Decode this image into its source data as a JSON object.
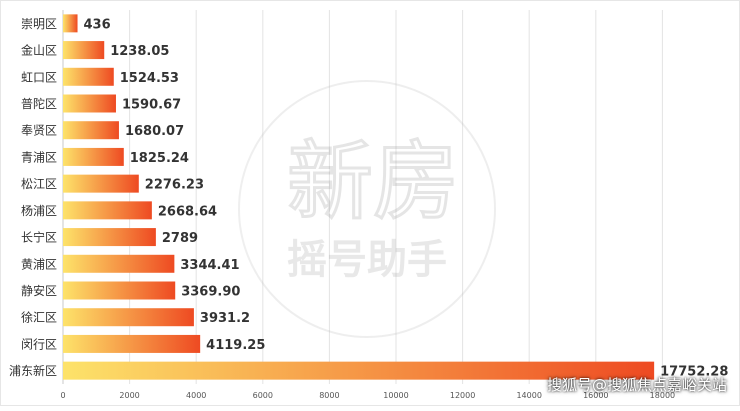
{
  "chart_data": {
    "type": "bar",
    "orientation": "horizontal",
    "categories": [
      "崇明区",
      "金山区",
      "虹口区",
      "普陀区",
      "奉贤区",
      "青浦区",
      "松江区",
      "杨浦区",
      "长宁区",
      "黄浦区",
      "静安区",
      "徐汇区",
      "闵行区",
      "浦东新区"
    ],
    "values": [
      436,
      1238.05,
      1524.53,
      1590.67,
      1680.07,
      1825.24,
      2276.23,
      2668.64,
      2789,
      3344.41,
      3369.9,
      3931.2,
      4119.25,
      17752.28
    ],
    "value_labels": [
      "436",
      "1238.05",
      "1524.53",
      "1590.67",
      "1680.07",
      "1825.24",
      "2276.23",
      "2668.64",
      "2789",
      "3344.41",
      "3369.90",
      "3931.2",
      "4119.25",
      "17752.28"
    ],
    "x_ticks": [
      "0",
      "2000",
      "4000",
      "6000",
      "8000",
      "10000",
      "12000",
      "14000",
      "16000",
      "18000"
    ],
    "xlim": [
      0,
      20000
    ],
    "grid": true,
    "colors": {
      "bar_start": "#fde36a",
      "bar_end": "#ee4a22",
      "grid": "#e3e3e3",
      "label": "#333333"
    }
  },
  "watermark": {
    "line1": "新房",
    "line2": "摇号助手"
  },
  "footer": {
    "credit": "搜狐号@搜狐焦点嘉峪关站"
  }
}
